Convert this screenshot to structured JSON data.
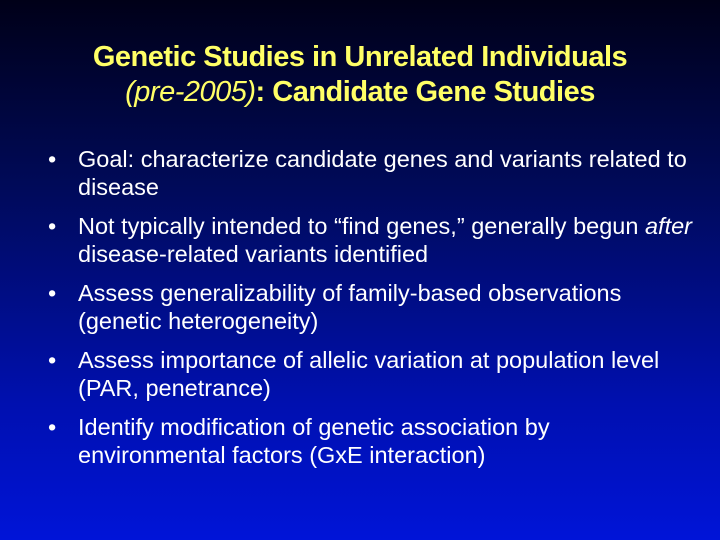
{
  "title": {
    "line1": "Genetic Studies in Unrelated Individuals",
    "line2_italic": "(pre-2005)",
    "line2_rest": ": Candidate Gene Studies"
  },
  "bullets": [
    {
      "pre": "Goal: characterize candidate genes and variants related to disease",
      "em": "",
      "post": ""
    },
    {
      "pre": "Not typically intended to “find genes,” generally begun ",
      "em": "after",
      "post": " disease-related variants identified"
    },
    {
      "pre": "Assess generalizability of family-based observations (genetic heterogeneity)",
      "em": "",
      "post": ""
    },
    {
      "pre": "Assess importance of allelic variation at population level (PAR, penetrance)",
      "em": "",
      "post": ""
    },
    {
      "pre": "Identify modification of genetic association by environmental factors (GxE interaction)",
      "em": "",
      "post": ""
    }
  ],
  "bullet_char": "•",
  "colors": {
    "title": "#ffff66",
    "text": "#ffffff"
  }
}
